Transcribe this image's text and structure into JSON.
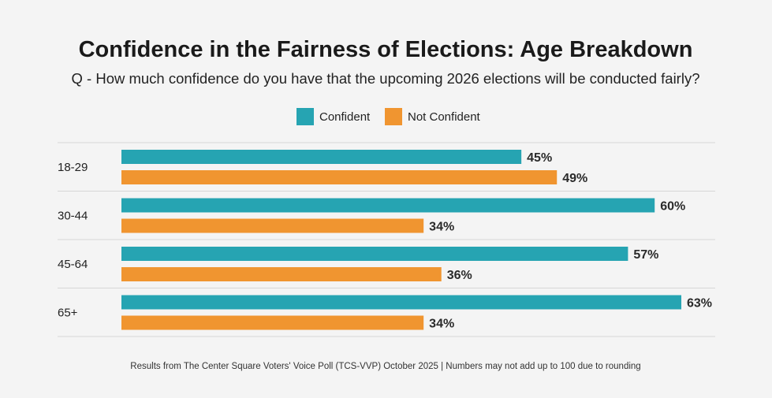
{
  "chart_data": {
    "type": "bar",
    "orientation": "horizontal",
    "title": "Confidence in the Fairness of Elections: Age Breakdown",
    "subtitle": "Q - How much confidence do you have that the upcoming 2026 elections will be conducted fairly?",
    "categories": [
      "18-29",
      "30-44",
      "45-64",
      "65+"
    ],
    "series": [
      {
        "name": "Confident",
        "color": "#26a4b2",
        "values": [
          45,
          60,
          57,
          63
        ],
        "labels": [
          "45%",
          "60%",
          "57%",
          "63%"
        ]
      },
      {
        "name": "Not Confident",
        "color": "#f09530",
        "values": [
          49,
          34,
          36,
          34
        ],
        "labels": [
          "49%",
          "34%",
          "36%",
          "34%"
        ]
      }
    ],
    "xlim": [
      0,
      100
    ],
    "legend_position": "top-center",
    "grid": false,
    "footnote": "Results from The Center Square Voters' Voice Poll (TCS-VVP) October 2025 | Numbers may not add up to 100 due to rounding"
  }
}
